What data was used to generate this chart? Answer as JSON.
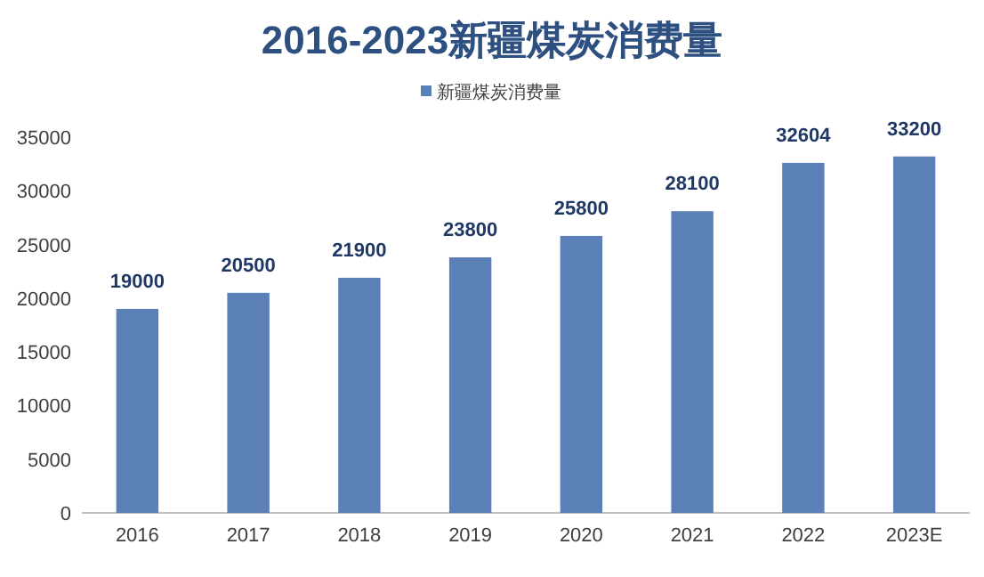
{
  "chart_data": {
    "type": "bar",
    "title": "2016-2023新疆煤炭消费量",
    "categories": [
      "2016",
      "2017",
      "2018",
      "2019",
      "2020",
      "2021",
      "2022",
      "2023E"
    ],
    "series": [
      {
        "name": "新疆煤炭消费量",
        "color": "#5b80b8",
        "values": [
          19000,
          20500,
          21900,
          23800,
          25800,
          28100,
          32604,
          33200
        ]
      }
    ],
    "ylim": [
      0,
      35000
    ],
    "yticks": [
      0,
      5000,
      10000,
      15000,
      20000,
      25000,
      30000,
      35000
    ],
    "data_labels": true,
    "legend": "top",
    "grid": false
  }
}
